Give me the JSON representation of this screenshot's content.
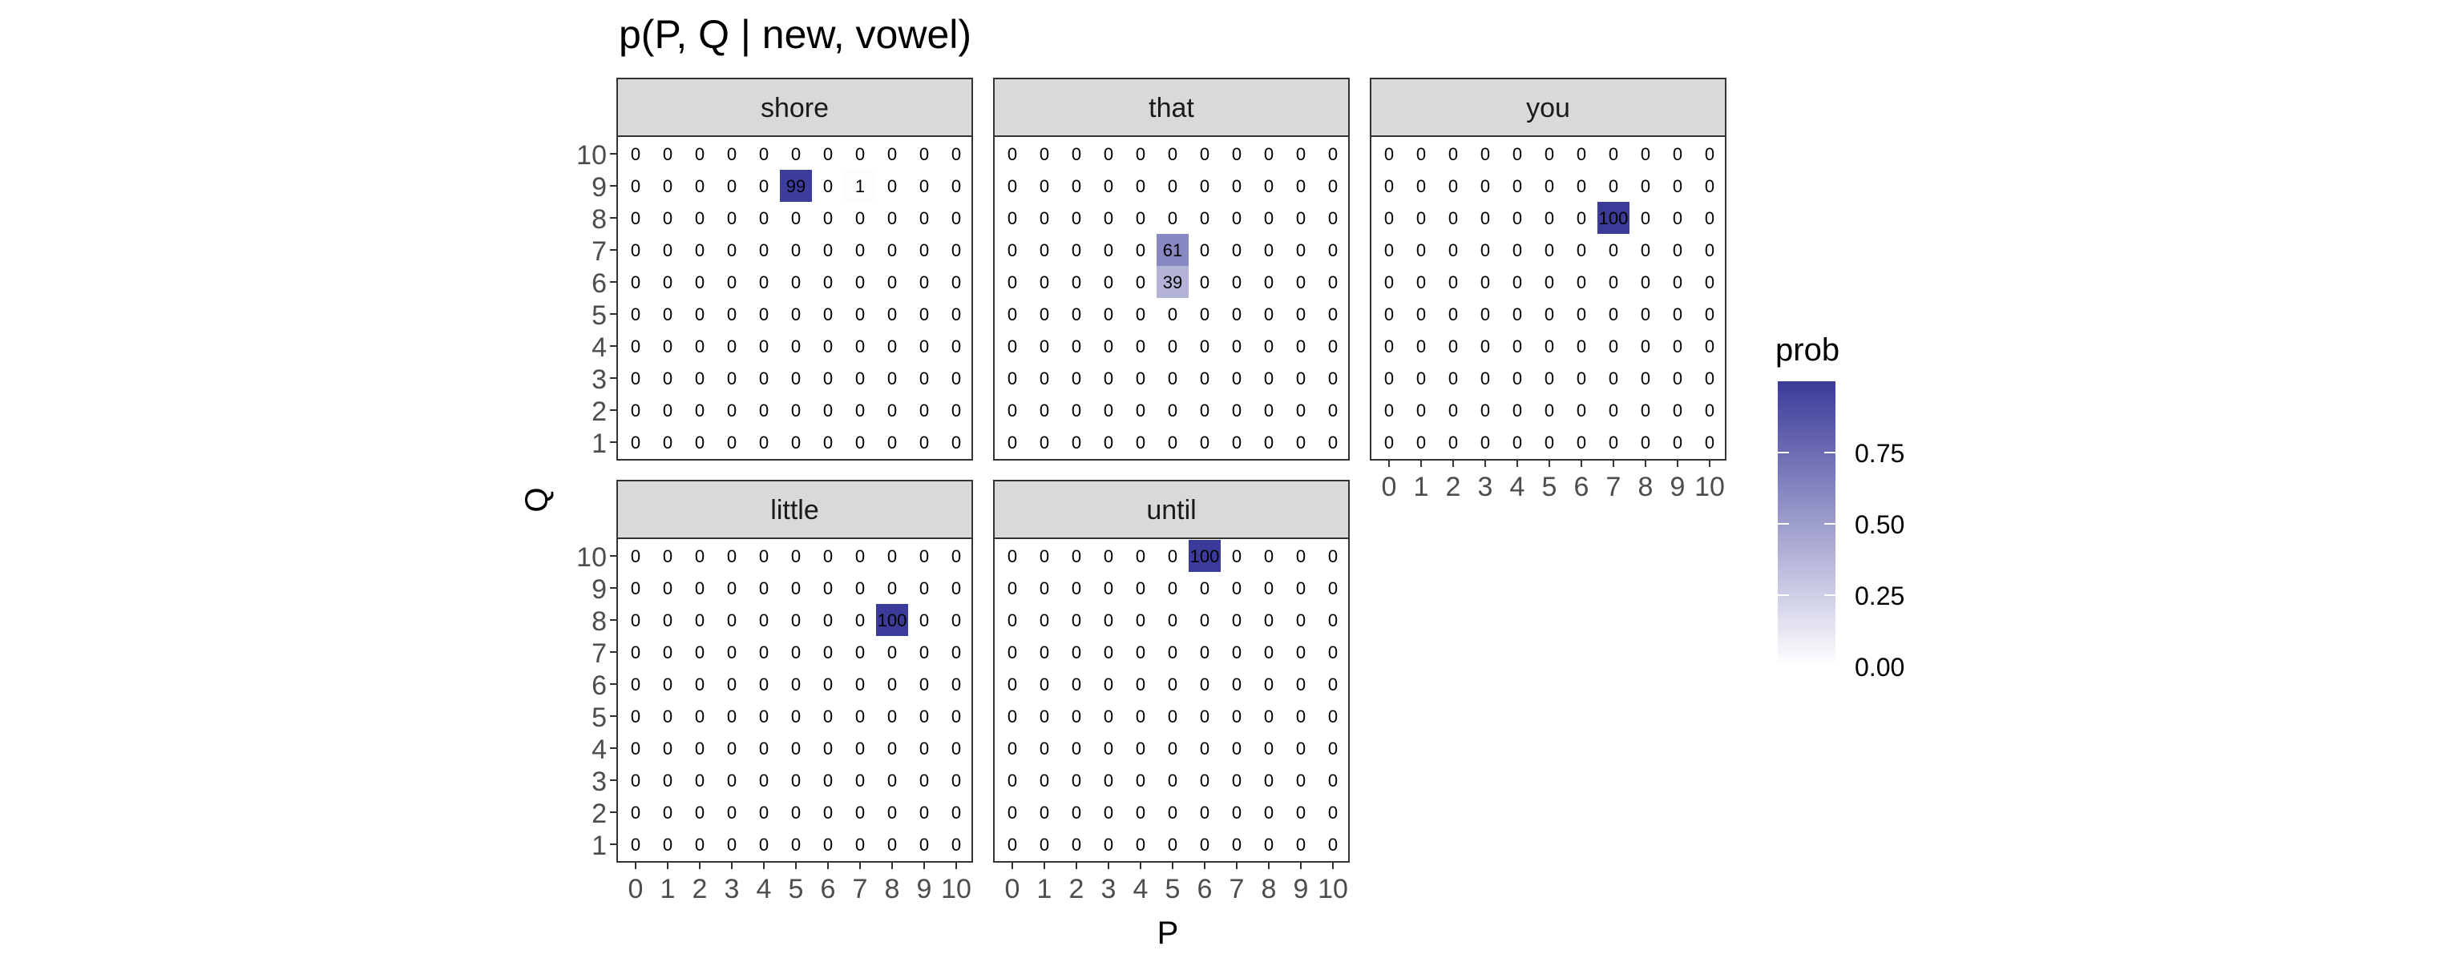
{
  "chart_data": {
    "type": "heatmap",
    "title": "p(P, Q | new, vowel)",
    "xlabel": "P",
    "ylabel": "Q",
    "x": [
      0,
      1,
      2,
      3,
      4,
      5,
      6,
      7,
      8,
      9,
      10
    ],
    "y": [
      1,
      2,
      3,
      4,
      5,
      6,
      7,
      8,
      9,
      10
    ],
    "x_tick_labels": [
      "0",
      "1",
      "2",
      "3",
      "4",
      "5",
      "6",
      "7",
      "8",
      "9",
      "10"
    ],
    "y_tick_labels": [
      "1",
      "2",
      "3",
      "4",
      "5",
      "6",
      "7",
      "8",
      "9",
      "10"
    ],
    "cell_label_default": "0",
    "color_low": "#ffffff",
    "color_high": "#3b3b9a",
    "legend": {
      "title": "prob",
      "placement": "right",
      "breaks": [
        0.0,
        0.25,
        0.5,
        0.75
      ],
      "break_labels": [
        "0.00",
        "0.25",
        "0.50",
        "0.75"
      ],
      "range": [
        0,
        1
      ]
    },
    "panels": [
      {
        "name": "shore",
        "cells": [
          {
            "p": 5,
            "q": 9,
            "prob": 0.99,
            "label": "99"
          },
          {
            "p": 7,
            "q": 9,
            "prob": 0.01,
            "label": "1"
          }
        ]
      },
      {
        "name": "that",
        "cells": [
          {
            "p": 5,
            "q": 7,
            "prob": 0.61,
            "label": "61"
          },
          {
            "p": 5,
            "q": 6,
            "prob": 0.39,
            "label": "39"
          }
        ]
      },
      {
        "name": "you",
        "cells": [
          {
            "p": 7,
            "q": 8,
            "prob": 1.0,
            "label": "100"
          }
        ]
      },
      {
        "name": "little",
        "cells": [
          {
            "p": 8,
            "q": 8,
            "prob": 1.0,
            "label": "100"
          }
        ]
      },
      {
        "name": "until",
        "cells": [
          {
            "p": 6,
            "q": 10,
            "prob": 1.0,
            "label": "100"
          }
        ]
      }
    ]
  }
}
